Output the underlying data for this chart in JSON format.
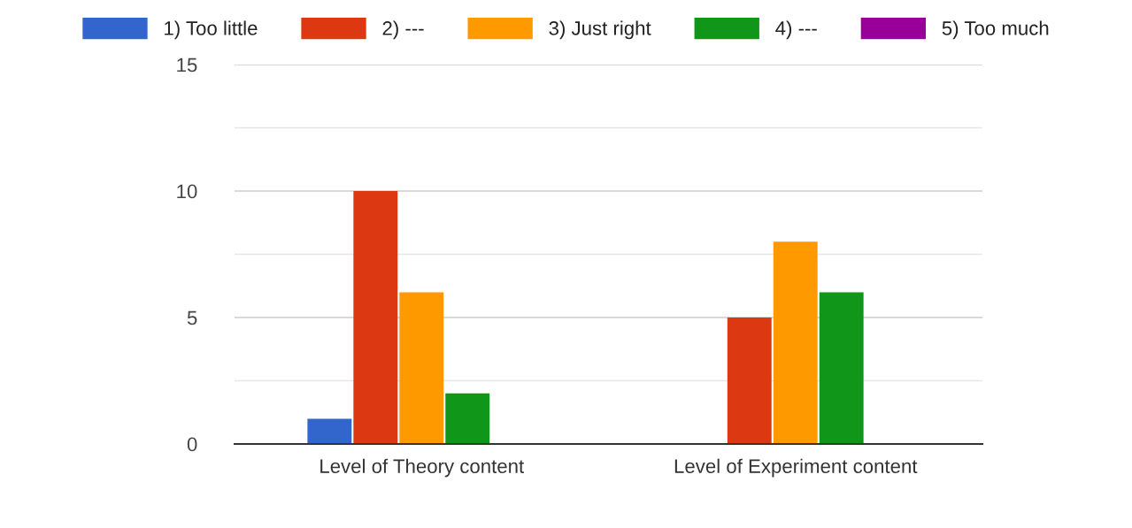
{
  "chart_data": {
    "type": "bar",
    "categories": [
      "Level of Theory content",
      "Level of Experiment content"
    ],
    "series": [
      {
        "name": "1) Too little",
        "color": "#3366cc",
        "values": [
          1,
          0
        ]
      },
      {
        "name": "2) ---",
        "color": "#dc3912",
        "values": [
          10,
          5
        ]
      },
      {
        "name": "3) Just right",
        "color": "#ff9900",
        "values": [
          6,
          8
        ]
      },
      {
        "name": "4) ---",
        "color": "#109618",
        "values": [
          2,
          6
        ]
      },
      {
        "name": "5) Too much",
        "color": "#990099",
        "values": [
          0,
          0
        ]
      }
    ],
    "ylim": [
      0,
      15
    ],
    "yticks": [
      0,
      {
        "value": 2.5,
        "label": null
      },
      5,
      {
        "value": 7.5,
        "label": null
      },
      10,
      {
        "value": 12.5,
        "label": null
      },
      15
    ],
    "grid": "y",
    "legend": "top"
  }
}
